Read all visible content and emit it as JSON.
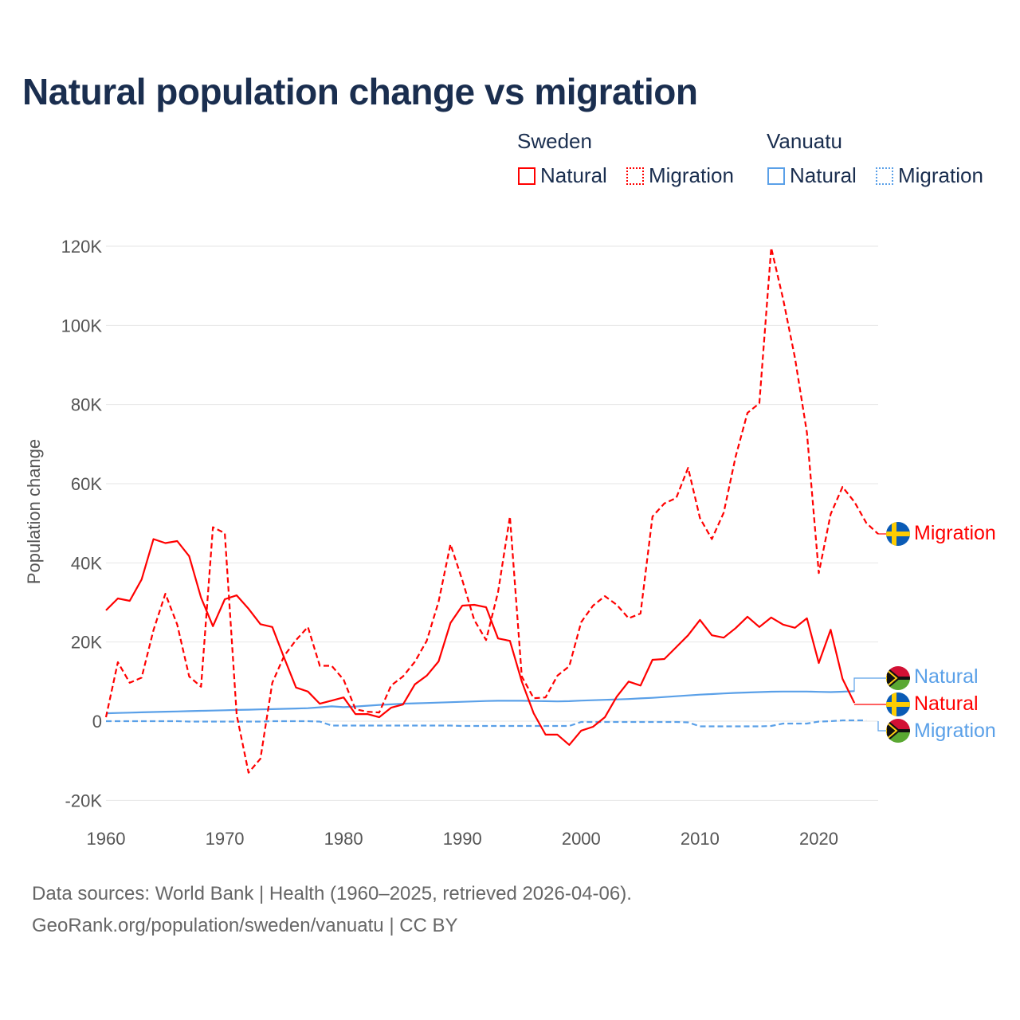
{
  "title": "Natural population change vs migration",
  "legend": {
    "groups": [
      {
        "name": "Sweden",
        "items": [
          {
            "label": "Natural",
            "style": "solid",
            "color": "#ff0000"
          },
          {
            "label": "Migration",
            "style": "dotted",
            "color": "#ff0000"
          }
        ]
      },
      {
        "name": "Vanuatu",
        "items": [
          {
            "label": "Natural",
            "style": "solid",
            "color": "#5aa0e8"
          },
          {
            "label": "Migration",
            "style": "dotted",
            "color": "#5aa0e8"
          }
        ]
      }
    ]
  },
  "end_labels": {
    "sweden_migration": "Migration",
    "vanuatu_natural": "Natural",
    "sweden_natural": "Natural",
    "vanuatu_migration": "Migration"
  },
  "footer": {
    "line1": "Data sources: World Bank | Health (1960–2025, retrieved 2026-04-06).",
    "line2": "GeoRank.org/population/sweden/vanuatu | CC BY"
  },
  "chart_data": {
    "type": "line",
    "title": "Natural population change vs migration",
    "xlabel": "",
    "ylabel": "Population change",
    "xlim": [
      1960,
      2025
    ],
    "ylim": [
      -20000,
      120000
    ],
    "x_ticks": [
      1960,
      1970,
      1980,
      1990,
      2000,
      2010,
      2020
    ],
    "x_tick_labels": [
      "1960",
      "1970",
      "1980",
      "1990",
      "2000",
      "2010",
      "2020"
    ],
    "y_ticks": [
      -20000,
      0,
      20000,
      40000,
      60000,
      80000,
      100000,
      120000
    ],
    "y_tick_labels": [
      "-20K",
      "0",
      "20K",
      "40K",
      "60K",
      "80K",
      "100K",
      "120K"
    ],
    "grid": true,
    "legend_position": "top-right",
    "series": [
      {
        "name": "Sweden Natural",
        "country": "Sweden",
        "kind": "Natural",
        "color": "#ff0000",
        "dash": false,
        "start_year": 1960,
        "values": [
          28000,
          31000,
          30400,
          35800,
          46000,
          45000,
          45500,
          41700,
          31200,
          24000,
          30800,
          31800,
          28400,
          24500,
          23800,
          16000,
          8500,
          7500,
          4400,
          5200,
          6000,
          1800,
          1800,
          1000,
          3400,
          4200,
          9300,
          11500,
          15100,
          24800,
          29200,
          29400,
          28800,
          20900,
          20300,
          10000,
          2000,
          -3400,
          -3400,
          -6000,
          -2400,
          -1400,
          1000,
          6200,
          10000,
          9000,
          15500,
          15700,
          18700,
          21700,
          25600,
          21700,
          21100,
          23500,
          26400,
          23800,
          26200,
          24400,
          23600,
          26000,
          14700,
          23100,
          10700,
          4600
        ]
      },
      {
        "name": "Sweden Migration",
        "country": "Sweden",
        "kind": "Migration",
        "color": "#ff0000",
        "dash": true,
        "start_year": 1960,
        "values": [
          1000,
          14900,
          9700,
          11000,
          23000,
          32200,
          24400,
          11300,
          8700,
          49000,
          47500,
          1600,
          -13000,
          -9500,
          9700,
          16500,
          20500,
          23800,
          14000,
          14000,
          10500,
          3000,
          2400,
          2200,
          9000,
          11300,
          15000,
          20300,
          30200,
          44700,
          35600,
          25600,
          20500,
          32600,
          51700,
          11300,
          5800,
          6000,
          11500,
          13900,
          25000,
          29200,
          31600,
          29400,
          26000,
          27200,
          51700,
          55000,
          56400,
          64000,
          51300,
          46000,
          52700,
          66800,
          77900,
          80300,
          119600,
          106700,
          91800,
          72900,
          37400,
          52300,
          59200,
          55400,
          50100,
          47300
        ]
      },
      {
        "name": "Vanuatu Natural",
        "country": "Vanuatu",
        "kind": "Natural",
        "color": "#5aa0e8",
        "dash": false,
        "start_year": 1960,
        "values": [
          2000,
          2080,
          2160,
          2240,
          2310,
          2390,
          2460,
          2540,
          2610,
          2680,
          2750,
          2830,
          2900,
          2980,
          3050,
          3130,
          3200,
          3280,
          3500,
          3750,
          3550,
          3700,
          3900,
          4100,
          4250,
          4400,
          4500,
          4600,
          4700,
          4800,
          4900,
          5000,
          5100,
          5150,
          5150,
          5150,
          5100,
          5050,
          5000,
          5050,
          5200,
          5300,
          5400,
          5500,
          5600,
          5750,
          5900,
          6100,
          6300,
          6500,
          6700,
          6850,
          7000,
          7150,
          7250,
          7350,
          7450,
          7500,
          7500,
          7500,
          7400,
          7350,
          7450,
          7600
        ]
      },
      {
        "name": "Vanuatu Migration",
        "country": "Vanuatu",
        "kind": "Migration",
        "color": "#5aa0e8",
        "dash": true,
        "start_year": 1960,
        "values": [
          0,
          0,
          0,
          0,
          0,
          0,
          0,
          -100,
          -100,
          -100,
          -100,
          -100,
          -100,
          -100,
          0,
          0,
          0,
          0,
          -100,
          -1100,
          -1100,
          -1100,
          -1100,
          -1100,
          -1100,
          -1100,
          -1100,
          -1100,
          -1100,
          -1100,
          -1200,
          -1200,
          -1200,
          -1200,
          -1200,
          -1200,
          -1200,
          -1200,
          -1200,
          -1200,
          -200,
          -200,
          -200,
          -200,
          -200,
          -200,
          -200,
          -200,
          -200,
          -300,
          -1300,
          -1300,
          -1300,
          -1300,
          -1300,
          -1300,
          -1200,
          -600,
          -600,
          -600,
          -100,
          0,
          200,
          200,
          200
        ]
      }
    ]
  }
}
